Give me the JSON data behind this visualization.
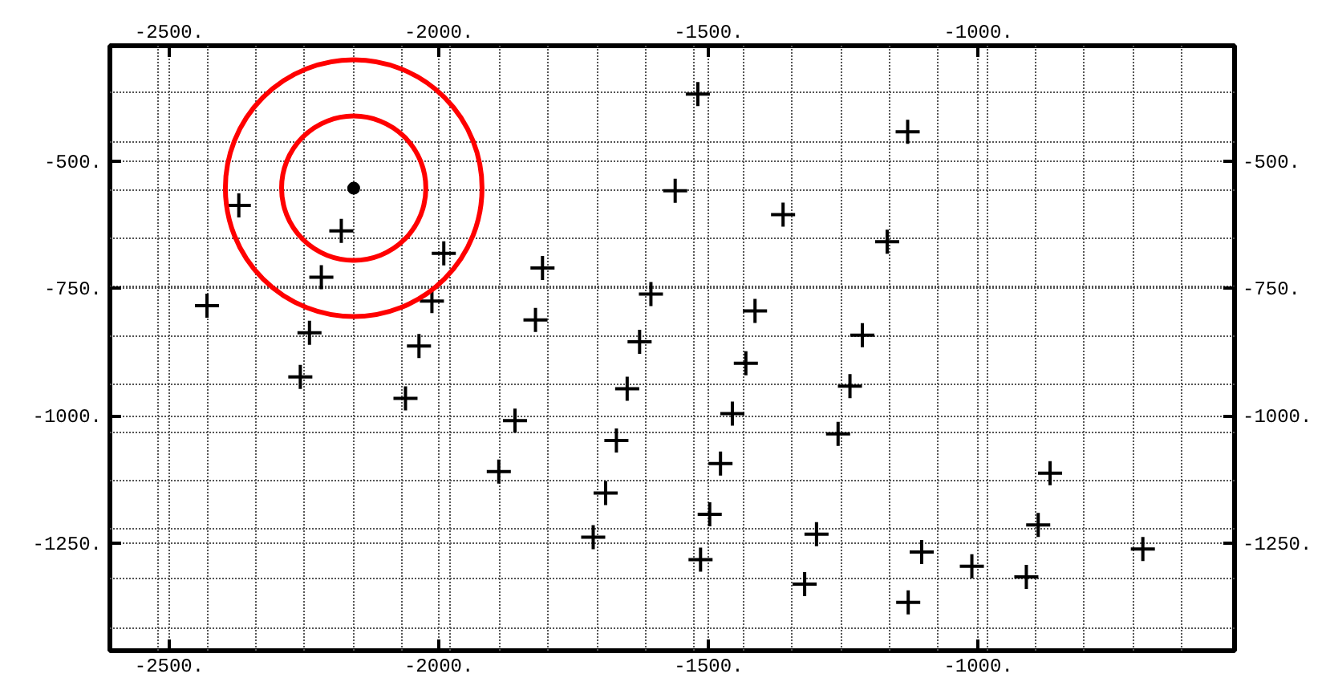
{
  "chart_data": {
    "type": "scatter",
    "xlim": [
      -2610,
      -525
    ],
    "ylim": [
      -1462,
      -273
    ],
    "x2lim": [
      -2610,
      -525
    ],
    "y2lim": [
      -1462,
      -273
    ],
    "xticks": [
      {
        "value": -2500,
        "label": "-2500."
      },
      {
        "value": -2000,
        "label": "-2000."
      },
      {
        "value": -1500,
        "label": "-1500."
      },
      {
        "value": -1000,
        "label": "-1000."
      },
      {
        "value": -2520,
        "label": null
      },
      {
        "value": -2430,
        "label": null
      },
      {
        "value": -2339,
        "label": null
      },
      {
        "value": -2249,
        "label": null
      },
      {
        "value": -2159,
        "label": null
      },
      {
        "value": -2068,
        "label": null
      },
      {
        "value": -1978,
        "label": null
      },
      {
        "value": -1888,
        "label": null
      },
      {
        "value": -1797,
        "label": null
      },
      {
        "value": -1707,
        "label": null
      },
      {
        "value": -1617,
        "label": null
      },
      {
        "value": -1526,
        "label": null
      },
      {
        "value": -1436,
        "label": null
      },
      {
        "value": -1346,
        "label": null
      },
      {
        "value": -1255,
        "label": null
      },
      {
        "value": -1165,
        "label": null
      },
      {
        "value": -1075,
        "label": null
      },
      {
        "value": -984,
        "label": null
      },
      {
        "value": -894,
        "label": null
      },
      {
        "value": -804,
        "label": null
      },
      {
        "value": -713,
        "label": null
      },
      {
        "value": -623,
        "label": null
      }
    ],
    "yticks": [
      {
        "value": -500,
        "label": "-500."
      },
      {
        "value": -750,
        "label": "-750."
      },
      {
        "value": -1000,
        "label": "-1000."
      },
      {
        "value": -1250,
        "label": "-1250."
      },
      {
        "value": -365,
        "label": null
      },
      {
        "value": -461,
        "label": null
      },
      {
        "value": -556,
        "label": null
      },
      {
        "value": -652,
        "label": null
      },
      {
        "value": -747,
        "label": null
      },
      {
        "value": -844,
        "label": null
      },
      {
        "value": -938,
        "label": null
      },
      {
        "value": -1034,
        "label": null
      },
      {
        "value": -1129,
        "label": null
      },
      {
        "value": -1223,
        "label": null
      },
      {
        "value": -1320,
        "label": null
      },
      {
        "value": -1417,
        "label": null
      }
    ],
    "x2ticks": [
      {
        "value": -2500,
        "label": "-2500."
      },
      {
        "value": -2000,
        "label": "-2000."
      },
      {
        "value": -1500,
        "label": "-1500."
      },
      {
        "value": -1000,
        "label": "-1000."
      }
    ],
    "y2ticks": [
      {
        "value": -500,
        "label": "-500."
      },
      {
        "value": -750,
        "label": "-750."
      },
      {
        "value": -1000,
        "label": "-1000."
      },
      {
        "value": -1250,
        "label": "-1250."
      }
    ],
    "grid": true,
    "series": [
      {
        "marker": "cross",
        "color": "#000000",
        "x": [
          -1520,
          -1562,
          -2371,
          -2181,
          -1991,
          -2218,
          -1808,
          -1607,
          -2430,
          -2013,
          -1821,
          -2240,
          -2037,
          -1628,
          -2257,
          -2062,
          -1651,
          -1859,
          -1456,
          -1671,
          -1889,
          -1478,
          -1691,
          -1498,
          -1714,
          -1515,
          -1131,
          -1362,
          -1169,
          -1414,
          -1215,
          -1431,
          -1238,
          -1260,
          -867,
          -889,
          -1300,
          -695,
          -1105,
          -1012,
          -911,
          -1322,
          -1130
        ],
        "values": [
          -368,
          -558,
          -587,
          -637,
          -681,
          -728,
          -710,
          -761,
          -784,
          -775,
          -812,
          -837,
          -863,
          -855,
          -924,
          -966,
          -947,
          -1010,
          -996,
          -1049,
          -1110,
          -1094,
          -1152,
          -1194,
          -1239,
          -1283,
          -442,
          -605,
          -658,
          -794,
          -842,
          -897,
          -942,
          -1036,
          -1113,
          -1215,
          -1233,
          -1262,
          -1268,
          -1296,
          -1317,
          -1331,
          -1367
        ]
      },
      {
        "type": "bubble",
        "color": "#ff0000",
        "x": [
          -2158,
          -2158
        ],
        "values": [
          -553,
          -553
        ],
        "sizes": [
          0.316,
          1
        ]
      },
      {
        "type": "scatter",
        "marker": "circle",
        "color": "#000000",
        "x": [
          -2158
        ],
        "values": [
          -553
        ]
      }
    ]
  }
}
